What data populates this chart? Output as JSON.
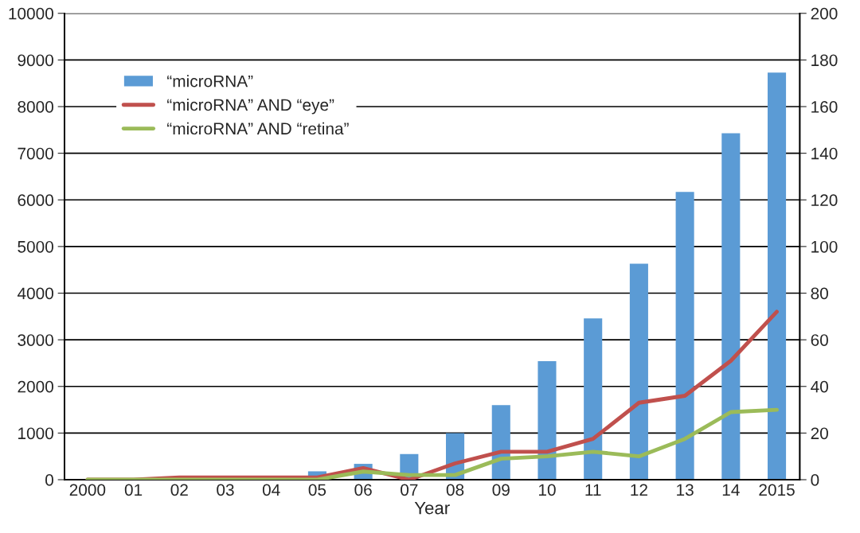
{
  "chart_data": {
    "type": "bar",
    "xlabel": "Year",
    "categories": [
      "2000",
      "01",
      "02",
      "03",
      "04",
      "05",
      "06",
      "07",
      "08",
      "09",
      "10",
      "11",
      "12",
      "13",
      "14",
      "2015"
    ],
    "series": [
      {
        "name": "“microRNA”",
        "color": "#5b9bd5",
        "values": [
          0,
          0,
          0,
          0,
          0,
          180,
          340,
          550,
          1000,
          1600,
          2540,
          3460,
          4630,
          6170,
          7430,
          8730
        ]
      },
      {
        "name": "“microRNA” AND “eye”",
        "type": "line",
        "axis": "y2",
        "color": "#c0504d",
        "values": [
          0,
          0,
          1,
          1,
          1,
          1,
          5,
          0,
          7,
          12,
          12,
          17.5,
          33,
          36,
          51,
          72
        ]
      },
      {
        "name": "“microRNA” AND “retina”",
        "type": "line",
        "axis": "y2",
        "color": "#9bbb59",
        "values": [
          0,
          0,
          0,
          0,
          0,
          0,
          3.5,
          2,
          2,
          9,
          10,
          12,
          10,
          17.5,
          29,
          30
        ]
      }
    ],
    "ylim": [
      0,
      10000
    ],
    "yticks": [
      0,
      1000,
      2000,
      3000,
      4000,
      5000,
      6000,
      7000,
      8000,
      9000,
      10000
    ],
    "y2lim": [
      0,
      200
    ],
    "y2ticks": [
      0,
      20,
      40,
      60,
      80,
      100,
      120,
      140,
      160,
      180,
      200
    ],
    "grid": "y",
    "legend": "top left",
    "marker": "none",
    "line_style": "solid"
  }
}
